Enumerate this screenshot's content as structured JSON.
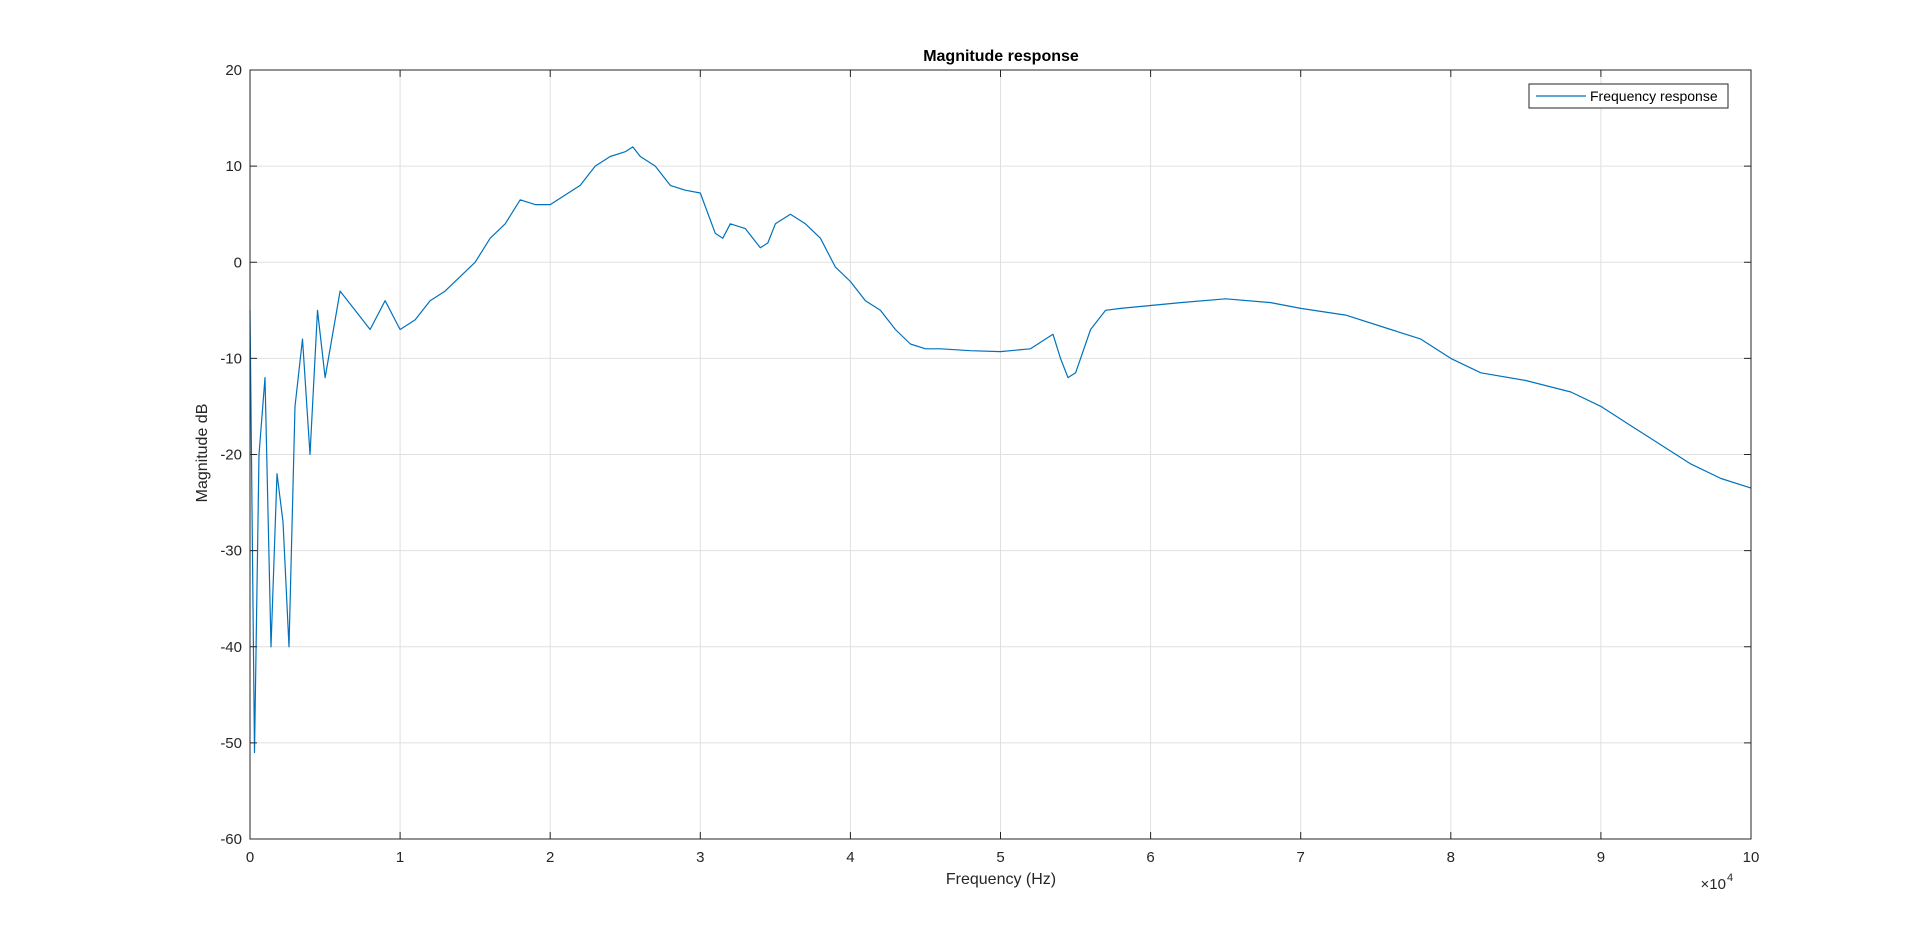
{
  "chart_data": {
    "type": "line",
    "title": "Magnitude response",
    "xlabel": "Frequency (Hz)",
    "ylabel": "Magnitude dB",
    "x_exponent_label": "×10",
    "x_exponent": "4",
    "xlim": [
      0,
      10
    ],
    "ylim": [
      -60,
      20
    ],
    "x_scale_note": "×10^4 Hz",
    "xticks": [
      0,
      1,
      2,
      3,
      4,
      5,
      6,
      7,
      8,
      9,
      10
    ],
    "xtick_labels": [
      "0",
      "1",
      "2",
      "3",
      "4",
      "5",
      "6",
      "7",
      "8",
      "9",
      "10"
    ],
    "yticks": [
      -60,
      -50,
      -40,
      -30,
      -20,
      -10,
      0,
      10,
      20
    ],
    "ytick_labels": [
      "-60",
      "-50",
      "-40",
      "-30",
      "-20",
      "-10",
      "0",
      "10",
      "20"
    ],
    "grid": true,
    "legend_placement": "top-right",
    "colors": {
      "series": "#0072BD",
      "grid": "#e0e0e0",
      "axis": "#262626"
    },
    "series": [
      {
        "name": "Frequency response",
        "x": [
          0,
          0.03,
          0.06,
          0.1,
          0.14,
          0.18,
          0.22,
          0.26,
          0.3,
          0.35,
          0.4,
          0.45,
          0.5,
          0.6,
          0.7,
          0.8,
          0.9,
          1.0,
          1.1,
          1.2,
          1.3,
          1.4,
          1.5,
          1.6,
          1.7,
          1.8,
          1.9,
          2.0,
          2.1,
          2.2,
          2.3,
          2.4,
          2.5,
          2.55,
          2.6,
          2.7,
          2.8,
          2.9,
          3.0,
          3.1,
          3.15,
          3.2,
          3.3,
          3.4,
          3.45,
          3.5,
          3.6,
          3.7,
          3.8,
          3.9,
          4.0,
          4.1,
          4.2,
          4.3,
          4.4,
          4.5,
          4.6,
          4.8,
          5.0,
          5.2,
          5.35,
          5.4,
          5.45,
          5.5,
          5.6,
          5.7,
          5.8,
          6.0,
          6.2,
          6.5,
          6.8,
          7.0,
          7.3,
          7.6,
          7.8,
          8.0,
          8.2,
          8.5,
          8.8,
          9.0,
          9.2,
          9.4,
          9.6,
          9.8,
          10.0
        ],
        "y": [
          -5,
          -51,
          -20,
          -12,
          -40,
          -22,
          -27,
          -40,
          -15,
          -8,
          -20,
          -5,
          -12,
          -3,
          -5,
          -7,
          -4,
          -7,
          -6,
          -4,
          -3,
          -1.5,
          0,
          2.5,
          4,
          6.5,
          6,
          6,
          7,
          8,
          10,
          11,
          11.5,
          12,
          11,
          10,
          8,
          7.5,
          7.2,
          3,
          2.5,
          4,
          3.5,
          1.5,
          2,
          4,
          5,
          4,
          2.5,
          -0.5,
          -2,
          -4,
          -5,
          -7,
          -8.5,
          -9,
          -9,
          -9.2,
          -9.3,
          -9,
          -7.5,
          -10,
          -12,
          -11.5,
          -7,
          -5,
          -4.8,
          -4.5,
          -4.2,
          -3.8,
          -4.2,
          -4.8,
          -5.5,
          -7,
          -8,
          -10,
          -11.5,
          -12.3,
          -13.5,
          -15,
          -17,
          -19,
          -21,
          -22.5,
          -23.5
        ]
      }
    ]
  }
}
